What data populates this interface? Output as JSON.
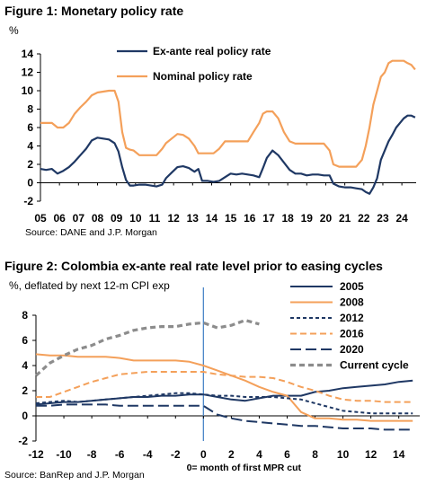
{
  "figure1": {
    "title": "Figure 1: Monetary policy rate",
    "unit": "%",
    "source": "Source: DANE and J.P. Morgan"
  },
  "figure2": {
    "title": "Figure 2: Colombia ex-ante real rate level prior to easing cycles",
    "unit": "%, deflated by next 12-m CPI exp",
    "source": "Source:  BanRep and J.P. Morgan",
    "xlabel": "0= month of first MPR cut"
  },
  "chart_data": [
    {
      "type": "line",
      "title": "Figure 1: Monetary policy rate",
      "ylabel": "%",
      "ylim": [
        -2,
        14
      ],
      "xlim": [
        2005.0,
        2024.75
      ],
      "y_ticks": [
        -2,
        0,
        2,
        4,
        6,
        8,
        10,
        12,
        14
      ],
      "x_ticks": [
        2005,
        2006,
        2007,
        2008,
        2009,
        2010,
        2011,
        2012,
        2013,
        2014,
        2015,
        2016,
        2017,
        2018,
        2019,
        2020,
        2021,
        2022,
        2023,
        2024
      ],
      "x_tick_labels": [
        "05",
        "06",
        "07",
        "08",
        "09",
        "10",
        "11",
        "12",
        "13",
        "14",
        "15",
        "16",
        "17",
        "18",
        "19",
        "20",
        "21",
        "22",
        "23",
        "24"
      ],
      "legend_position": "top-center",
      "grid": false,
      "series": [
        {
          "name": "Ex-ante real policy rate",
          "color": "#1f3864",
          "x": [
            2005.0,
            2005.3,
            2005.6,
            2005.9,
            2006.2,
            2006.5,
            2006.8,
            2007.1,
            2007.4,
            2007.7,
            2008.0,
            2008.3,
            2008.6,
            2008.9,
            2009.1,
            2009.3,
            2009.5,
            2009.7,
            2009.9,
            2010.2,
            2010.5,
            2010.8,
            2011.1,
            2011.4,
            2011.6,
            2011.9,
            2012.2,
            2012.5,
            2012.8,
            2013.1,
            2013.3,
            2013.5,
            2013.8,
            2014.1,
            2014.4,
            2014.7,
            2015.0,
            2015.3,
            2015.6,
            2015.9,
            2016.2,
            2016.5,
            2016.7,
            2016.9,
            2017.2,
            2017.5,
            2017.8,
            2018.1,
            2018.4,
            2018.7,
            2019.0,
            2019.3,
            2019.6,
            2019.9,
            2020.2,
            2020.4,
            2020.7,
            2021.0,
            2021.3,
            2021.6,
            2021.9,
            2022.1,
            2022.3,
            2022.5,
            2022.7,
            2022.9,
            2023.1,
            2023.3,
            2023.5,
            2023.7,
            2023.9,
            2024.1,
            2024.3,
            2024.5,
            2024.7
          ],
          "y": [
            1.5,
            1.4,
            1.5,
            1.0,
            1.3,
            1.7,
            2.3,
            3.0,
            3.7,
            4.6,
            4.9,
            4.8,
            4.7,
            4.3,
            3.4,
            1.7,
            0.3,
            -0.3,
            -0.3,
            -0.2,
            -0.2,
            -0.3,
            -0.4,
            -0.2,
            0.5,
            1.1,
            1.7,
            1.8,
            1.6,
            1.2,
            1.5,
            0.2,
            0.2,
            0.1,
            0.2,
            0.6,
            1.0,
            0.9,
            1.0,
            0.9,
            0.8,
            0.6,
            1.6,
            2.7,
            3.5,
            3.0,
            2.2,
            1.4,
            1.0,
            1.0,
            0.8,
            0.9,
            0.9,
            0.8,
            0.8,
            -0.1,
            -0.4,
            -0.5,
            -0.5,
            -0.6,
            -0.7,
            -1.0,
            -1.2,
            -0.5,
            0.5,
            2.5,
            3.5,
            4.5,
            5.2,
            6.0,
            6.5,
            7.0,
            7.3,
            7.3,
            7.1
          ]
        },
        {
          "name": "Nominal policy rate",
          "color": "#f4a05a",
          "x": [
            2005.0,
            2005.3,
            2005.6,
            2005.9,
            2006.2,
            2006.5,
            2006.8,
            2007.1,
            2007.4,
            2007.7,
            2008.0,
            2008.3,
            2008.6,
            2008.9,
            2009.1,
            2009.3,
            2009.5,
            2009.7,
            2009.9,
            2010.2,
            2010.5,
            2010.8,
            2011.1,
            2011.4,
            2011.6,
            2011.9,
            2012.2,
            2012.5,
            2012.8,
            2013.1,
            2013.3,
            2013.5,
            2013.8,
            2014.1,
            2014.4,
            2014.7,
            2015.0,
            2015.3,
            2015.6,
            2015.9,
            2016.2,
            2016.5,
            2016.7,
            2016.9,
            2017.2,
            2017.5,
            2017.8,
            2018.1,
            2018.4,
            2018.7,
            2019.0,
            2019.3,
            2019.6,
            2019.9,
            2020.2,
            2020.4,
            2020.7,
            2021.0,
            2021.3,
            2021.6,
            2021.9,
            2022.1,
            2022.3,
            2022.5,
            2022.7,
            2022.9,
            2023.1,
            2023.3,
            2023.5,
            2023.7,
            2023.9,
            2024.1,
            2024.3,
            2024.5,
            2024.7
          ],
          "y": [
            6.5,
            6.5,
            6.5,
            6.0,
            6.0,
            6.5,
            7.5,
            8.2,
            8.8,
            9.5,
            9.8,
            9.9,
            10.0,
            10.0,
            8.8,
            5.5,
            3.8,
            3.6,
            3.5,
            3.0,
            3.0,
            3.0,
            3.0,
            3.7,
            4.3,
            4.8,
            5.3,
            5.2,
            4.8,
            4.0,
            3.2,
            3.2,
            3.2,
            3.2,
            3.7,
            4.5,
            4.5,
            4.5,
            4.5,
            4.5,
            5.5,
            6.5,
            7.5,
            7.75,
            7.75,
            7.0,
            5.5,
            4.5,
            4.25,
            4.25,
            4.25,
            4.25,
            4.25,
            4.25,
            3.5,
            2.0,
            1.75,
            1.75,
            1.75,
            1.75,
            2.5,
            4.0,
            6.0,
            8.5,
            10.0,
            11.5,
            12.0,
            13.0,
            13.25,
            13.25,
            13.25,
            13.25,
            13.0,
            12.8,
            12.3
          ]
        }
      ]
    },
    {
      "type": "line",
      "title": "Figure 2: Colombia ex-ante real rate level prior to easing cycles",
      "ylabel": "%, deflated by next 12-m CPI exp",
      "xlabel": "0= month of first MPR cut",
      "ylim": [
        -2,
        8
      ],
      "xlim": [
        -12,
        15.5
      ],
      "y_ticks": [
        -2,
        0,
        2,
        4,
        6,
        8
      ],
      "x_ticks": [
        -12,
        -10,
        -8,
        -6,
        -4,
        -2,
        0,
        2,
        4,
        6,
        8,
        10,
        12,
        14
      ],
      "reference_line_x": 0,
      "legend_position": "top-right",
      "grid": false,
      "series": [
        {
          "name": "2005",
          "color": "#1f3864",
          "dash": "solid",
          "x": [
            -12,
            -11,
            -10,
            -9,
            -8,
            -7,
            -6,
            -5,
            -4,
            -3,
            -2,
            -1,
            0,
            1,
            2,
            3,
            4,
            5,
            6,
            7,
            8,
            9,
            10,
            11,
            12,
            13,
            14,
            15
          ],
          "y": [
            0.9,
            1.0,
            1.1,
            1.1,
            1.2,
            1.3,
            1.4,
            1.5,
            1.5,
            1.6,
            1.6,
            1.7,
            1.7,
            1.5,
            1.3,
            1.2,
            1.4,
            1.6,
            1.6,
            1.6,
            1.9,
            2.0,
            2.2,
            2.3,
            2.4,
            2.5,
            2.7,
            2.8
          ]
        },
        {
          "name": "2008",
          "color": "#f4a05a",
          "dash": "solid",
          "x": [
            -12,
            -11,
            -10,
            -9,
            -8,
            -7,
            -6,
            -5,
            -4,
            -3,
            -2,
            -1,
            0,
            1,
            2,
            3,
            4,
            5,
            6,
            7,
            8,
            9,
            10,
            11,
            12,
            13,
            14,
            15
          ],
          "y": [
            4.9,
            4.8,
            4.8,
            4.7,
            4.7,
            4.7,
            4.6,
            4.4,
            4.4,
            4.4,
            4.4,
            4.3,
            4.0,
            3.6,
            3.2,
            2.8,
            2.3,
            1.9,
            1.6,
            0.3,
            -0.2,
            -0.2,
            -0.3,
            -0.3,
            -0.4,
            -0.4,
            -0.4,
            -0.4
          ]
        },
        {
          "name": "2012",
          "color": "#1f3864",
          "dash": "short",
          "x": [
            -12,
            -11,
            -10,
            -9,
            -8,
            -7,
            -6,
            -5,
            -4,
            -3,
            -2,
            -1,
            0,
            1,
            2,
            3,
            4,
            5,
            6,
            7,
            8,
            9,
            10,
            11,
            12,
            13,
            14,
            15
          ],
          "y": [
            1.0,
            1.1,
            1.2,
            1.1,
            1.2,
            1.3,
            1.4,
            1.5,
            1.6,
            1.7,
            1.8,
            1.8,
            1.7,
            1.6,
            1.6,
            1.5,
            1.5,
            1.5,
            1.4,
            1.3,
            1.0,
            0.7,
            0.4,
            0.3,
            0.2,
            0.2,
            0.2,
            0.2
          ]
        },
        {
          "name": "2016",
          "color": "#f4a05a",
          "dash": "medium",
          "x": [
            -12,
            -11,
            -10,
            -9,
            -8,
            -7,
            -6,
            -5,
            -4,
            -3,
            -2,
            -1,
            0,
            1,
            2,
            3,
            4,
            5,
            6,
            7,
            8,
            9,
            10,
            11,
            12,
            13,
            14,
            15
          ],
          "y": [
            1.5,
            1.5,
            1.9,
            2.3,
            2.7,
            3.0,
            3.3,
            3.4,
            3.5,
            3.5,
            3.5,
            3.5,
            3.5,
            3.3,
            3.2,
            3.1,
            3.1,
            3.0,
            2.7,
            2.3,
            2.0,
            1.6,
            1.3,
            1.2,
            1.2,
            1.1,
            1.1,
            1.1
          ]
        },
        {
          "name": "2020",
          "color": "#1f3864",
          "dash": "long",
          "x": [
            -12,
            -11,
            -10,
            -9,
            -8,
            -7,
            -6,
            -5,
            -4,
            -3,
            -2,
            -1,
            0,
            1,
            2,
            3,
            4,
            5,
            6,
            7,
            8,
            9,
            10,
            11,
            12,
            13,
            14,
            15
          ],
          "y": [
            0.8,
            0.8,
            0.9,
            0.9,
            0.9,
            0.9,
            0.8,
            0.8,
            0.8,
            0.8,
            0.8,
            0.8,
            0.8,
            0.1,
            -0.2,
            -0.4,
            -0.5,
            -0.6,
            -0.7,
            -0.8,
            -0.8,
            -0.9,
            -1.0,
            -1.0,
            -1.0,
            -1.1,
            -1.1,
            -1.1
          ]
        },
        {
          "name": "Current cycle",
          "color": "#8c8c8c",
          "dash": "thick",
          "x": [
            -12,
            -11,
            -10,
            -9,
            -8,
            -7,
            -6,
            -5,
            -4,
            -3,
            -2,
            -1,
            0,
            1,
            2,
            3,
            4
          ],
          "y": [
            3.2,
            4.2,
            4.8,
            5.3,
            5.6,
            6.1,
            6.4,
            6.8,
            7.0,
            7.1,
            7.1,
            7.3,
            7.4,
            7.0,
            7.2,
            7.6,
            7.3
          ]
        }
      ]
    }
  ]
}
